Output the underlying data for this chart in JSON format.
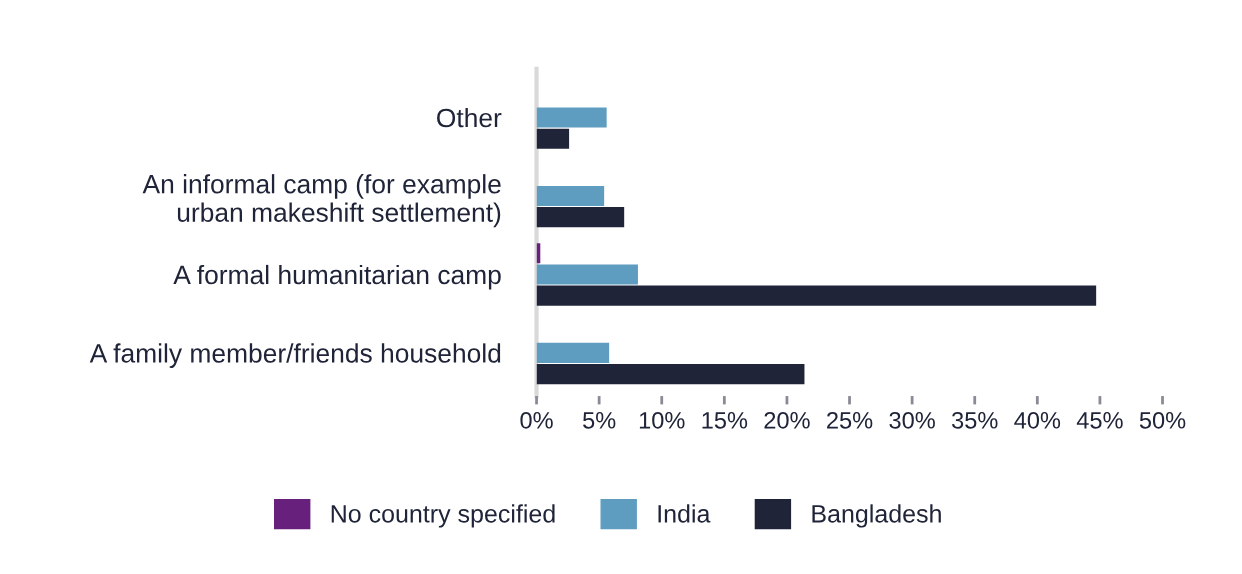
{
  "chart_data": {
    "type": "bar",
    "orientation": "horizontal",
    "categories": [
      "Other",
      "An informal camp (for example\nurban makeshift settlement)",
      "A formal humanitarian camp",
      "A family member/friends household"
    ],
    "series": [
      {
        "name": "No country specified",
        "color": "#68207d",
        "values": [
          null,
          null,
          0.3,
          null
        ]
      },
      {
        "name": "India",
        "color": "#5f9dc0",
        "values": [
          5.6,
          5.4,
          8.1,
          5.8
        ]
      },
      {
        "name": "Bangladesh",
        "color": "#1f2438",
        "values": [
          2.6,
          7.0,
          44.7,
          21.4
        ]
      }
    ],
    "xlim": [
      0,
      50
    ],
    "xticks": [
      {
        "value": 0,
        "label": "0%"
      },
      {
        "value": 5,
        "label": "5%"
      },
      {
        "value": 10,
        "label": "10%"
      },
      {
        "value": 15,
        "label": "15%"
      },
      {
        "value": 20,
        "label": "20%"
      },
      {
        "value": 25,
        "label": "25%"
      },
      {
        "value": 30,
        "label": "30%"
      },
      {
        "value": 35,
        "label": "35%"
      },
      {
        "value": 40,
        "label": "40%"
      },
      {
        "value": 45,
        "label": "45%"
      },
      {
        "value": 50,
        "label": "50%"
      }
    ],
    "grid": false,
    "legend": "bottom"
  }
}
